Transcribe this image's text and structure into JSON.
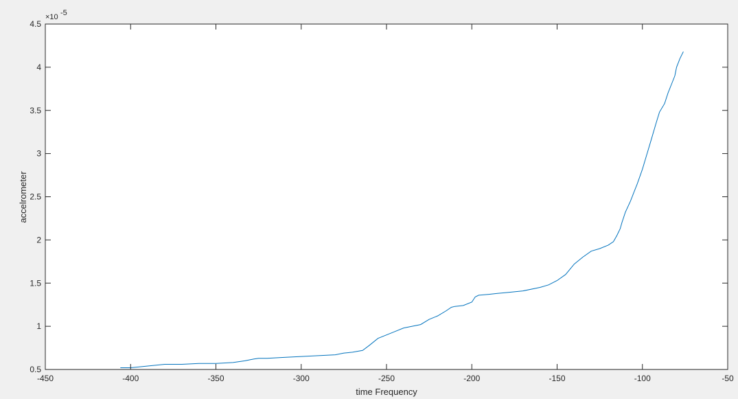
{
  "chart_data": {
    "type": "line",
    "title": "",
    "xlabel": "time Frequency",
    "ylabel": "accelrometer",
    "xlim": [
      -450,
      -50
    ],
    "ylim": [
      0.5,
      4.5
    ],
    "y_multiplier_base": "×10",
    "y_multiplier_exp": "-5",
    "xticks": [
      -450,
      -400,
      -350,
      -300,
      -250,
      -200,
      -150,
      -100,
      -50
    ],
    "yticks": [
      0.5,
      1,
      1.5,
      2,
      2.5,
      3,
      3.5,
      4,
      4.5
    ],
    "xtick_labels": [
      "-450",
      "-400",
      "-350",
      "-300",
      "-250",
      "-200",
      "-150",
      "-100",
      "-50"
    ],
    "ytick_labels": [
      "0.5",
      "1",
      "1.5",
      "2",
      "2.5",
      "3",
      "3.5",
      "4",
      "4.5"
    ],
    "grid": false,
    "line_color": "#0072bd",
    "series": [
      {
        "x": [
          -406,
          -400,
          -395,
          -390,
          -385,
          -380,
          -370,
          -360,
          -350,
          -340,
          -333,
          -328,
          -325,
          -320,
          -310,
          -300,
          -290,
          -280,
          -275,
          -270,
          -264,
          -260,
          -255,
          -250,
          -245,
          -240,
          -235,
          -230,
          -225,
          -220,
          -215,
          -212,
          -210,
          -205,
          -200,
          -198,
          -196,
          -190,
          -185,
          -180,
          -170,
          -160,
          -155,
          -150,
          -145,
          -140,
          -135,
          -130,
          -125,
          -120,
          -117,
          -115,
          -113,
          -112,
          -110,
          -107,
          -105,
          -103,
          -100,
          -98,
          -95,
          -92,
          -90,
          -87,
          -85,
          -83,
          -81,
          -80,
          -78,
          -76
        ],
        "y": [
          0.52,
          0.52,
          0.53,
          0.54,
          0.55,
          0.56,
          0.56,
          0.57,
          0.57,
          0.58,
          0.6,
          0.62,
          0.63,
          0.63,
          0.64,
          0.65,
          0.66,
          0.67,
          0.69,
          0.7,
          0.72,
          0.78,
          0.86,
          0.9,
          0.94,
          0.98,
          1.0,
          1.02,
          1.08,
          1.12,
          1.18,
          1.22,
          1.23,
          1.24,
          1.28,
          1.34,
          1.36,
          1.37,
          1.38,
          1.39,
          1.41,
          1.45,
          1.48,
          1.53,
          1.6,
          1.72,
          1.8,
          1.87,
          1.9,
          1.94,
          1.98,
          2.05,
          2.13,
          2.2,
          2.32,
          2.45,
          2.55,
          2.65,
          2.82,
          2.95,
          3.15,
          3.35,
          3.48,
          3.58,
          3.7,
          3.8,
          3.9,
          4.0,
          4.1,
          4.18
        ]
      }
    ]
  }
}
